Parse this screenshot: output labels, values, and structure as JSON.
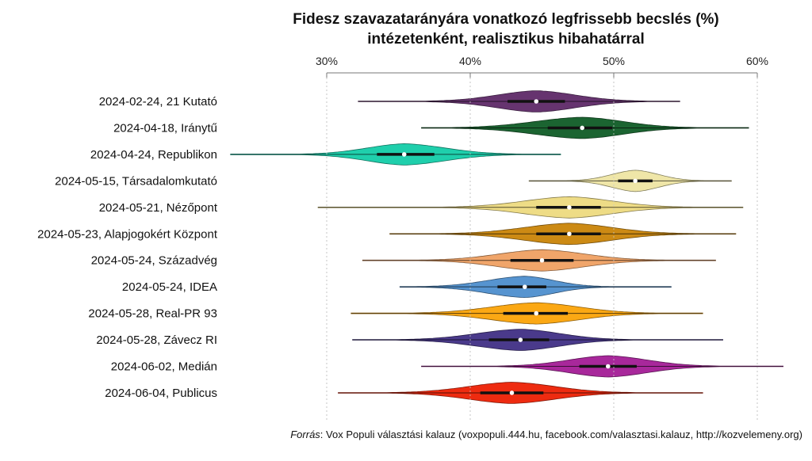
{
  "chart_data": {
    "type": "violin",
    "title": "Fidesz szavazatarányára vonatkozó legfrissebb becslés (%)",
    "subtitle": "intézetenként, realisztikus hibahatárral",
    "xlim": [
      30,
      60
    ],
    "xticks": [
      30,
      40,
      50,
      60
    ],
    "xtick_labels": [
      "30%",
      "40%",
      "50%",
      "60%"
    ],
    "grid": true,
    "source_label": "Forrás",
    "source_text": ": Vox Populi választási kalauz (voxpopuli.444.hu, facebook.com/valasztasi.kalauz, http://kozvelemeny.org)",
    "series": [
      {
        "name": "2024-02-24, 21 Kutató",
        "min": 32.2,
        "q1": 42.6,
        "median": 44.6,
        "q3": 46.6,
        "max": 54.6,
        "color": "#66346f"
      },
      {
        "name": "2024-04-18, Iránytű",
        "min": 36.6,
        "q1": 45.4,
        "median": 47.8,
        "q3": 49.9,
        "max": 59.4,
        "color": "#1b6431"
      },
      {
        "name": "2024-04-24, Republikon",
        "min": 23.3,
        "q1": 33.5,
        "median": 35.4,
        "q3": 37.5,
        "max": 46.3,
        "color": "#1fcfac"
      },
      {
        "name": "2024-05-15, Társadalomkutató",
        "min": 44.1,
        "q1": 50.3,
        "median": 51.5,
        "q3": 52.7,
        "max": 58.2,
        "color": "#efe6a8"
      },
      {
        "name": "2024-05-21, Nézőpont",
        "min": 29.4,
        "q1": 44.6,
        "median": 46.9,
        "q3": 49.1,
        "max": 59.0,
        "color": "#eedc86"
      },
      {
        "name": "2024-05-23, Alapjogokért Központ",
        "min": 34.4,
        "q1": 44.6,
        "median": 46.9,
        "q3": 49.1,
        "max": 58.5,
        "color": "#cc8a14"
      },
      {
        "name": "2024-05-24, Századvég",
        "min": 32.5,
        "q1": 42.8,
        "median": 45.0,
        "q3": 47.2,
        "max": 57.1,
        "color": "#f0a56a"
      },
      {
        "name": "2024-05-24, IDEA",
        "min": 35.1,
        "q1": 41.9,
        "median": 43.8,
        "q3": 45.3,
        "max": 54.0,
        "color": "#5694d0"
      },
      {
        "name": "2024-05-28, Real-PR 93",
        "min": 31.7,
        "q1": 42.3,
        "median": 44.6,
        "q3": 46.8,
        "max": 56.2,
        "color": "#fba814"
      },
      {
        "name": "2024-05-28, Závecz RI",
        "min": 31.8,
        "q1": 41.3,
        "median": 43.5,
        "q3": 45.5,
        "max": 57.6,
        "color": "#4a3a8b"
      },
      {
        "name": "2024-06-02, Medián",
        "min": 36.6,
        "q1": 47.6,
        "median": 49.6,
        "q3": 51.6,
        "max": 61.8,
        "color": "#a8289b"
      },
      {
        "name": "2024-06-04, Publicus",
        "min": 30.8,
        "q1": 40.7,
        "median": 42.9,
        "q3": 45.1,
        "max": 56.2,
        "color": "#ee2b10"
      }
    ]
  }
}
